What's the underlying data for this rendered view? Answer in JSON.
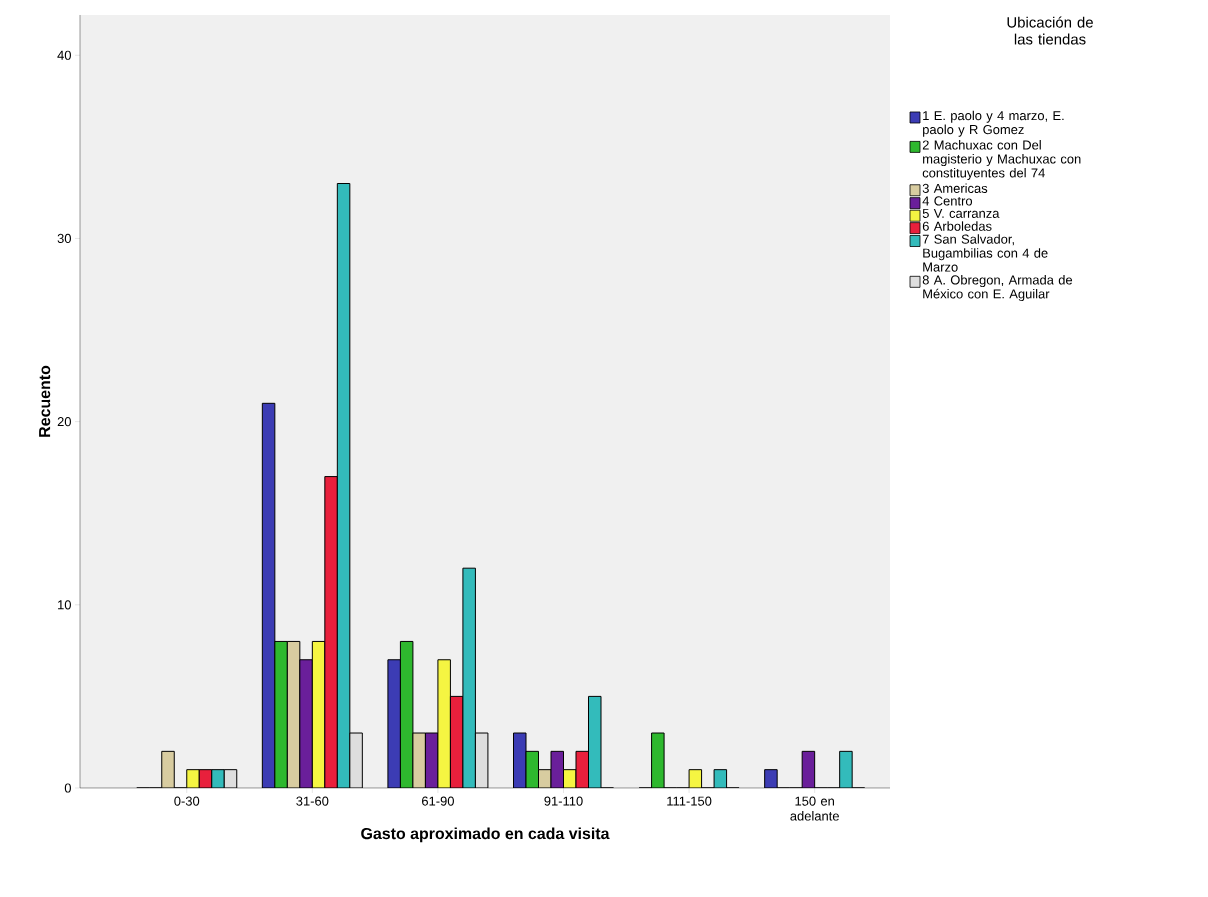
{
  "chart_data": {
    "type": "bar",
    "xlabel": "Gasto aproximado en cada visita",
    "ylabel": "Recuento",
    "legend_title": "Ubicación de las tiendas",
    "categories": [
      "0-30",
      "31-60",
      "61-90",
      "91-110",
      "111-150",
      "150 en adelante"
    ],
    "series": [
      {
        "name": "1 E. paolo y 4 marzo, E. paolo y R Gomez",
        "color": "#3c3cb4",
        "values": [
          0,
          21,
          7,
          3,
          0,
          1
        ]
      },
      {
        "name": "2 Machuxac con Del magisterio y Machuxac con constituyentes del 74",
        "color": "#2eb82e",
        "values": [
          0,
          8,
          8,
          2,
          3,
          0
        ]
      },
      {
        "name": "3 Americas",
        "color": "#d8cca0",
        "values": [
          2,
          8,
          3,
          1,
          0,
          0
        ]
      },
      {
        "name": "4 Centro",
        "color": "#6a1f9a",
        "values": [
          0,
          7,
          3,
          2,
          0,
          2
        ]
      },
      {
        "name": "5 V. carranza",
        "color": "#f5f542",
        "values": [
          1,
          8,
          7,
          1,
          1,
          0
        ]
      },
      {
        "name": "6 Arboledas",
        "color": "#e8203c",
        "values": [
          1,
          17,
          5,
          2,
          0,
          0
        ]
      },
      {
        "name": "7 San Salvador, Bugambilias con 4 de Marzo",
        "color": "#33bbbb",
        "values": [
          1,
          33,
          12,
          5,
          1,
          2
        ]
      },
      {
        "name": "8 A. Obregon, Armada de México con E. Aguilar",
        "color": "#dedede",
        "values": [
          1,
          3,
          3,
          0,
          0,
          0
        ]
      }
    ],
    "ylim": [
      0,
      42.2
    ],
    "yticks": [
      0,
      10,
      20,
      30,
      40
    ],
    "legend": "right"
  }
}
